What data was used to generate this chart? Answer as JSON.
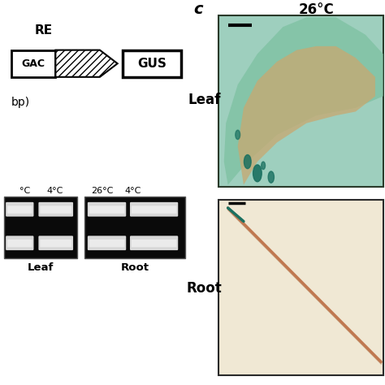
{
  "bg_color": "#ffffff",
  "title_c": "c",
  "temp_label": "26°C",
  "leaf_label": "Leaf",
  "root_label": "Root",
  "gus_label": "GUS",
  "gac_label": "GAC",
  "re_label": "RE",
  "bp_label": "bp)",
  "leaf_temp_labels": [
    "°C",
    "4°C",
    "26°C",
    "4°C"
  ],
  "leaf_root_labels": [
    "Leaf",
    "Root"
  ],
  "gel_bg": "#0a0a0a",
  "gel_band_color": "#e8e8e8",
  "leaf_bg": "#9ecfbe",
  "root_bg": "#f0e8d4",
  "leaf_inner": "#7ab89a",
  "leaf_vein": "#c8a060",
  "teal_spot": "#1a7060",
  "root_line": "#c07850",
  "scalebar_color": "#000000",
  "diagram_lw": 2.0,
  "gel_lw": 1.0
}
